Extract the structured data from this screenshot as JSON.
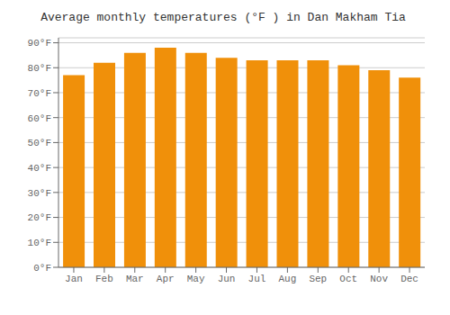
{
  "chart_data": {
    "type": "bar",
    "title": "Average monthly temperatures (°F ) in Dan Makham Tia",
    "categories": [
      "Jan",
      "Feb",
      "Mar",
      "Apr",
      "May",
      "Jun",
      "Jul",
      "Aug",
      "Sep",
      "Oct",
      "Nov",
      "Dec"
    ],
    "values": [
      77,
      82,
      86,
      88,
      86,
      84,
      83,
      83,
      83,
      81,
      79,
      76
    ],
    "color": "#F0900A",
    "ylim": [
      0,
      92
    ],
    "yticks": [
      {
        "value": 0,
        "label": "0°F"
      },
      {
        "value": 10,
        "label": "10°F"
      },
      {
        "value": 20,
        "label": "20°F"
      },
      {
        "value": 30,
        "label": "30°F"
      },
      {
        "value": 40,
        "label": "40°F"
      },
      {
        "value": 50,
        "label": "50°F"
      },
      {
        "value": 60,
        "label": "60°F"
      },
      {
        "value": 70,
        "label": "70°F"
      },
      {
        "value": 80,
        "label": "80°F"
      },
      {
        "value": 90,
        "label": "90°F"
      }
    ],
    "grid": true
  }
}
